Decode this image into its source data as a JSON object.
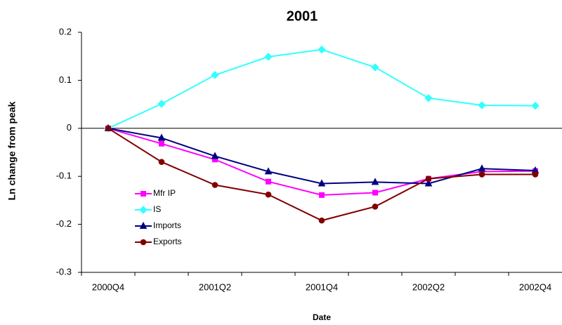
{
  "chart_data": {
    "type": "line",
    "title": "2001",
    "x_label": "Date",
    "y_label": "Ln change from peak",
    "categories": [
      "2000Q4",
      null,
      "2001Q2",
      null,
      "2001Q4",
      null,
      "2002Q2",
      null,
      "2002Q4"
    ],
    "series": [
      {
        "name": "Mfr IP",
        "color": "#ff00ff",
        "marker": "square",
        "values": [
          0,
          -0.032,
          -0.065,
          -0.111,
          -0.139,
          -0.134,
          -0.105,
          -0.09,
          -0.089
        ]
      },
      {
        "name": "IS",
        "color": "#33ffff",
        "marker": "diamond",
        "values": [
          0,
          0.051,
          0.111,
          0.149,
          0.164,
          0.127,
          0.063,
          0.048,
          0.047
        ]
      },
      {
        "name": "Imports",
        "color": "#000080",
        "marker": "triangle",
        "values": [
          0,
          -0.02,
          -0.058,
          -0.09,
          -0.115,
          -0.112,
          -0.115,
          -0.084,
          -0.088
        ]
      },
      {
        "name": "Exports",
        "color": "#800000",
        "marker": "circle",
        "values": [
          0,
          -0.07,
          -0.118,
          -0.138,
          -0.192,
          -0.163,
          -0.105,
          -0.096,
          -0.096
        ]
      }
    ],
    "ylim": [
      -0.3,
      0.2
    ],
    "yticks": [
      0.2,
      0.1,
      0,
      -0.1,
      -0.2,
      -0.3
    ],
    "grid": false,
    "legend": "center-left"
  }
}
